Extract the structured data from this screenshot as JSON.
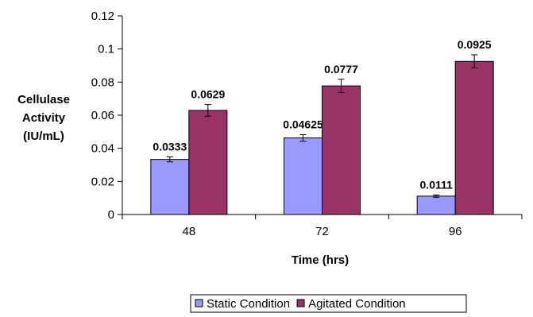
{
  "chart_data": {
    "type": "bar",
    "categories": [
      "48",
      "72",
      "96"
    ],
    "series": [
      {
        "name": "Static Condition",
        "color": "#9999FF",
        "values": [
          0.0333,
          0.04625,
          0.0111
        ],
        "errors": [
          0.0015,
          0.002,
          0.0007
        ],
        "labels": [
          "0.0333",
          "0.04625",
          "0.0111"
        ]
      },
      {
        "name": "Agitated Condition",
        "color": "#993366",
        "values": [
          0.0629,
          0.0777,
          0.0925
        ],
        "errors": [
          0.0035,
          0.004,
          0.004
        ],
        "labels": [
          "0.0629",
          "0.0777",
          "0.0925"
        ]
      }
    ],
    "xlabel": "Time (hrs)",
    "ylabel_lines": [
      "Cellulase",
      "Activity",
      "(IU/mL)"
    ],
    "ylim": [
      0,
      0.12
    ],
    "yticks": [
      0,
      0.02,
      0.04,
      0.06,
      0.08,
      0.1,
      0.12
    ],
    "ytick_labels": [
      "0",
      "0.02",
      "0.04",
      "0.06",
      "0.08",
      "0.1",
      "0.12"
    ],
    "grid": false,
    "legend_position": "bottom"
  }
}
